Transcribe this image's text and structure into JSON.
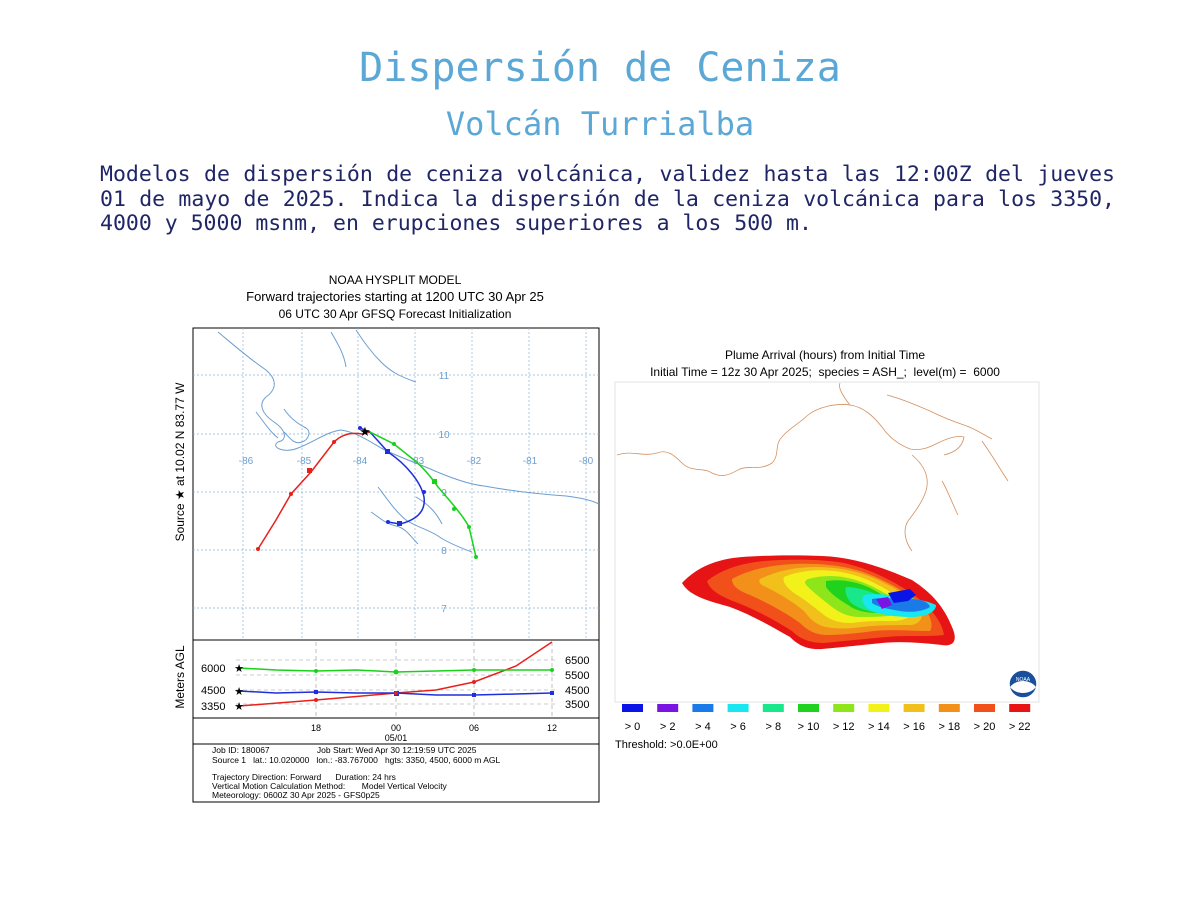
{
  "title": "Dispersión de Ceniza",
  "subtitle": "Volcán Turrialba",
  "description": "Modelos de dispersión de ceniza volcánica, validez hasta las 12:00Z del jueves 01 de mayo de 2025. Indica la dispersión de la ceniza volcánica para los 3350, 4000 y 5000 msnm, en erupciones superiores a los 500 m.",
  "hysplit": {
    "header": [
      "NOAA HYSPLIT MODEL",
      "Forward trajectories starting at 1200 UTC 30 Apr 25",
      "06 UTC 30 Apr    GFSQ  Forecast Initialization"
    ],
    "side_label": "Source ★ at   10.02 N   83.77 W",
    "lon_labels": [
      "-86",
      "-85",
      "-84",
      "-83",
      "-82",
      "-81",
      "-80"
    ],
    "lat_labels": [
      "11",
      "10",
      "9",
      "8",
      "7"
    ],
    "height_axis_label": "Meters AGL",
    "height_left_labels": [
      "6000",
      "4500",
      "3350"
    ],
    "height_right_labels": [
      "6500",
      "5500",
      "4500",
      "3500"
    ],
    "time_labels": [
      "18",
      "00",
      "06",
      "12"
    ],
    "date_label": "05/01",
    "footer": [
      "Job ID: 180067                    Job Start: Wed Apr 30 12:19:59 UTC 2025",
      "Source 1   lat.: 10.020000   lon.: -83.767000   hgts: 3350, 4500, 6000 m AGL",
      "Trajectory Direction: Forward      Duration: 24 hrs",
      "Vertical Motion Calculation Method:       Model Vertical Velocity",
      "Meteorology: 0600Z 30 Apr 2025 - GFS0p25"
    ],
    "colors": {
      "h3350": "#e8201c",
      "h4500": "#1f2fdc",
      "h6000": "#18d21a",
      "map": "#6c9fd0",
      "grid": "#8fb2d6"
    }
  },
  "plume": {
    "title_line1": "Plume Arrival (hours) from Initial Time",
    "title_line2": "Initial Time = 12z 30 Apr 2025;  species = ASH_;  level(m) =  6000",
    "legend_labels": [
      "> 0",
      "> 2",
      "> 4",
      "> 6",
      "> 8",
      "> 10",
      "> 12",
      "> 14",
      "> 16",
      "> 18",
      "> 20",
      "> 22"
    ],
    "legend_colors": [
      "#0a14e6",
      "#7a14e0",
      "#1a7ae8",
      "#18e6f0",
      "#18e88a",
      "#1ed21e",
      "#8ee61a",
      "#f2f21a",
      "#f2c01a",
      "#f2901a",
      "#f2501a",
      "#e61414"
    ],
    "threshold": "Threshold: >0.0E+00",
    "logo_text": "NOAA"
  }
}
